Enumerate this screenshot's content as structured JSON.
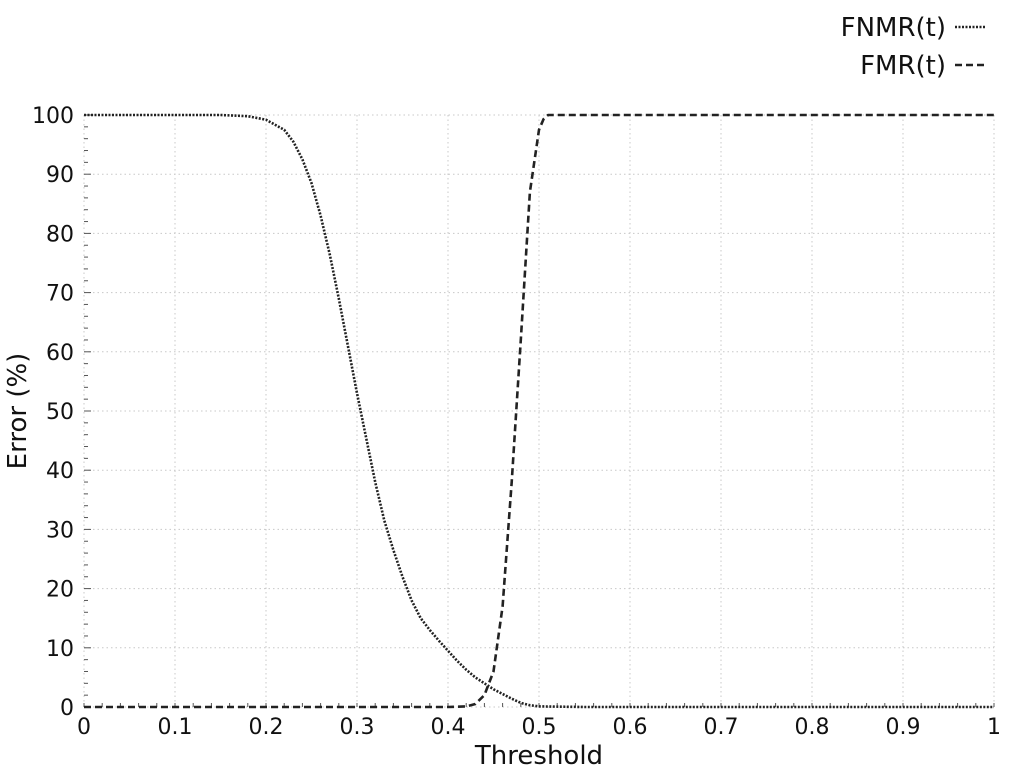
{
  "chart_data": {
    "type": "line",
    "title": "",
    "xlabel": "Threshold",
    "ylabel": "Error (%)",
    "xlim": [
      0,
      1
    ],
    "ylim": [
      0,
      100
    ],
    "grid": true,
    "legend_position": "top-right",
    "x_ticks": [
      0,
      0.1,
      0.2,
      0.3,
      0.4,
      0.5,
      0.6,
      0.7,
      0.8,
      0.9,
      1
    ],
    "x_tick_labels": [
      "0",
      "0.1",
      "0.2",
      "0.3",
      "0.4",
      "0.5",
      "0.6",
      "0.7",
      "0.8",
      "0.9",
      "1"
    ],
    "y_ticks": [
      0,
      10,
      20,
      30,
      40,
      50,
      60,
      70,
      80,
      90,
      100
    ],
    "y_tick_labels": [
      "0",
      "10",
      "20",
      "30",
      "40",
      "50",
      "60",
      "70",
      "80",
      "90",
      "100"
    ],
    "series": [
      {
        "name": "FNMR(t)",
        "line_style": "dotted",
        "color": "#222222",
        "x": [
          0,
          0.05,
          0.1,
          0.15,
          0.18,
          0.2,
          0.22,
          0.23,
          0.24,
          0.25,
          0.26,
          0.27,
          0.28,
          0.29,
          0.3,
          0.31,
          0.32,
          0.33,
          0.34,
          0.35,
          0.36,
          0.37,
          0.38,
          0.39,
          0.4,
          0.41,
          0.42,
          0.43,
          0.44,
          0.45,
          0.46,
          0.47,
          0.48,
          0.49,
          0.5,
          0.55,
          0.6,
          0.7,
          0.8,
          0.9,
          1
        ],
        "y": [
          100,
          100,
          100,
          100,
          99.8,
          99.2,
          97.5,
          95.5,
          92.5,
          88.5,
          83,
          76.5,
          69,
          61,
          53,
          45.5,
          38,
          31.5,
          26.5,
          22,
          18,
          15,
          13,
          11.2,
          9.5,
          7.8,
          6.3,
          5,
          4,
          3,
          2.2,
          1.4,
          0.7,
          0.3,
          0.1,
          0,
          0,
          0,
          0,
          0,
          0
        ]
      },
      {
        "name": "FMR(t)",
        "line_style": "dashed",
        "color": "#222222",
        "x": [
          0,
          0.1,
          0.2,
          0.3,
          0.4,
          0.42,
          0.43,
          0.44,
          0.45,
          0.46,
          0.47,
          0.48,
          0.49,
          0.5,
          0.505,
          0.51,
          0.52,
          0.6,
          0.8,
          1
        ],
        "y": [
          0,
          0,
          0,
          0,
          0,
          0.1,
          0.5,
          2,
          6,
          17,
          38,
          62,
          87,
          97.5,
          99.3,
          100,
          100,
          100,
          100,
          100
        ]
      }
    ]
  }
}
